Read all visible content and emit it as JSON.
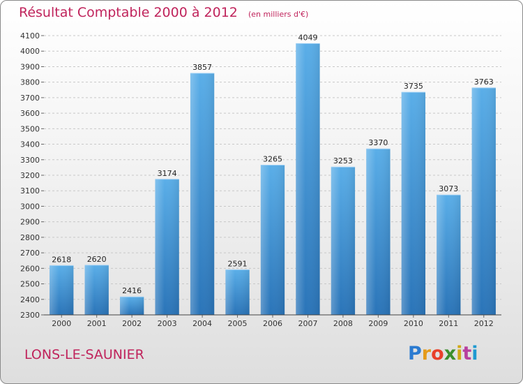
{
  "chart_data": {
    "type": "bar",
    "title": "Résultat Comptable 2000 à 2012",
    "subtitle": "(en milliers d'€)",
    "categories": [
      "2000",
      "2001",
      "2002",
      "2003",
      "2004",
      "2005",
      "2006",
      "2007",
      "2008",
      "2009",
      "2010",
      "2011",
      "2012"
    ],
    "values": [
      2618,
      2620,
      2416,
      3174,
      3857,
      2591,
      3265,
      4049,
      3253,
      3370,
      3735,
      3073,
      3763
    ],
    "ylim": [
      2300,
      4100
    ],
    "ytick_step": 100,
    "xlabel": "",
    "ylabel": "",
    "grid": true,
    "bar_color": "#3d8fd6"
  },
  "footer": {
    "city": "LONS-LE-SAUNIER",
    "logo_letters": [
      "P",
      "r",
      "o",
      "x",
      "i",
      "t",
      "i"
    ]
  }
}
